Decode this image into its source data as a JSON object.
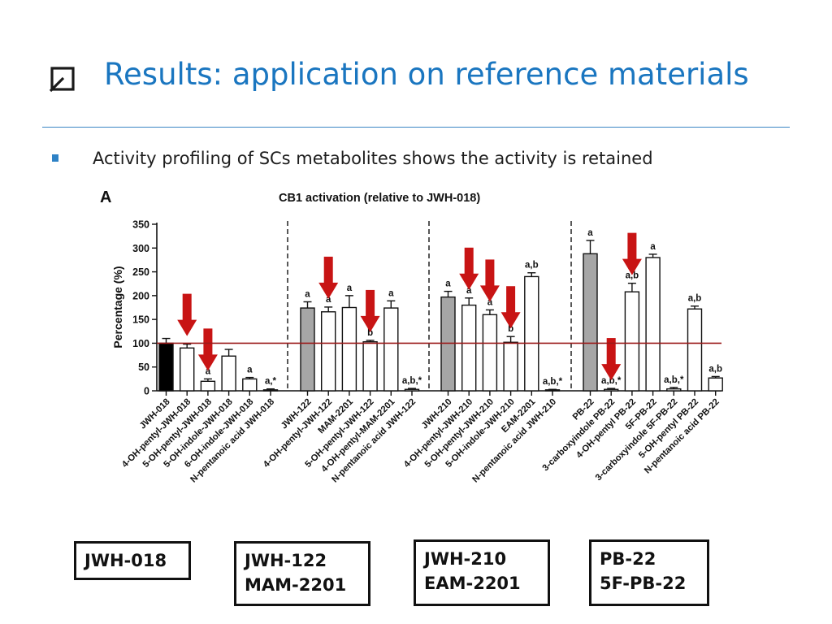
{
  "slide": {
    "title": "Results: application on reference materials",
    "bullet": "Activity profiling of SCs metabolites shows the activity is retained"
  },
  "colors": {
    "title": "#1a76c0",
    "arrow": "#c81414",
    "reference_line": "#9b1b1b",
    "parent_bar_jwh018": "#000000",
    "parent_bar": "#a6a6a6",
    "metabolite_bar": "#ffffff"
  },
  "chart_data": {
    "type": "bar",
    "panel_label": "A",
    "title": "CB1 activation (relative to JWH-018)",
    "ylabel": "Percentage (%)",
    "ylim": [
      0,
      350
    ],
    "yticks": [
      0,
      50,
      100,
      150,
      200,
      250,
      300,
      350
    ],
    "reference_line": 100,
    "grid": false,
    "legend": "none",
    "groups": [
      {
        "box_lines": [
          "JWH-018"
        ],
        "bars": [
          {
            "label": "JWH-018",
            "value": 100,
            "error": 10,
            "fill": "black",
            "annotation": "",
            "arrow": false
          },
          {
            "label": "4-OH-pentyl-JWH-018",
            "value": 90,
            "error": 8,
            "fill": "white",
            "annotation": "",
            "arrow": true
          },
          {
            "label": "5-OH-pentyl-JWH-018",
            "value": 20,
            "error": 5,
            "fill": "white",
            "annotation": "a",
            "arrow": true
          },
          {
            "label": "5-OH-indole-JWH-018",
            "value": 73,
            "error": 14,
            "fill": "white",
            "annotation": "",
            "arrow": false
          },
          {
            "label": "6-OH-indole-JWH-018",
            "value": 25,
            "error": 3,
            "fill": "white",
            "annotation": "a",
            "arrow": false
          },
          {
            "label": "N-pentanoic acid JWH-018",
            "value": 2,
            "error": 2,
            "fill": "white",
            "annotation": "a,*",
            "arrow": false
          }
        ]
      },
      {
        "box_lines": [
          "JWH-122",
          "MAM-2201"
        ],
        "bars": [
          {
            "label": "JWH-122",
            "value": 174,
            "error": 13,
            "fill": "grey",
            "annotation": "a",
            "arrow": false
          },
          {
            "label": "4-OH-pentyl-JWH-122",
            "value": 166,
            "error": 10,
            "fill": "white",
            "annotation": "a",
            "arrow": true
          },
          {
            "label": "MAM-2201",
            "value": 175,
            "error": 25,
            "fill": "white",
            "annotation": "a",
            "arrow": false
          },
          {
            "label": "5-OH-pentyl-JWH-122",
            "value": 103,
            "error": 3,
            "fill": "white",
            "annotation": "b",
            "arrow": true
          },
          {
            "label": "4-OH-pentyl-MAM-2201",
            "value": 174,
            "error": 15,
            "fill": "white",
            "annotation": "a",
            "arrow": false
          },
          {
            "label": "N-pentanoic acid JWH-122",
            "value": 3,
            "error": 2,
            "fill": "white",
            "annotation": "a,b,*",
            "arrow": false
          }
        ]
      },
      {
        "box_lines": [
          "JWH-210",
          "EAM-2201"
        ],
        "bars": [
          {
            "label": "JWH-210",
            "value": 197,
            "error": 12,
            "fill": "grey",
            "annotation": "a",
            "arrow": false
          },
          {
            "label": "4-OH-pentyl-JWH-210",
            "value": 180,
            "error": 15,
            "fill": "white",
            "annotation": "a",
            "arrow": true
          },
          {
            "label": "5-OH-pentyl-JWH-210",
            "value": 160,
            "error": 10,
            "fill": "white",
            "annotation": "a",
            "arrow": true
          },
          {
            "label": "5-OH-indole-JWH-210",
            "value": 102,
            "error": 12,
            "fill": "white",
            "annotation": "b",
            "arrow": true
          },
          {
            "label": "EAM-2201",
            "value": 240,
            "error": 8,
            "fill": "white",
            "annotation": "a,b",
            "arrow": false
          },
          {
            "label": "N-pentanoic acid JWH-210",
            "value": 2,
            "error": 1,
            "fill": "white",
            "annotation": "a,b,*",
            "arrow": false
          }
        ]
      },
      {
        "box_lines": [
          "PB-22",
          "5F-PB-22"
        ],
        "bars": [
          {
            "label": "PB-22",
            "value": 288,
            "error": 28,
            "fill": "grey",
            "annotation": "a",
            "arrow": false
          },
          {
            "label": "3-carboxyindole PB-22",
            "value": 3,
            "error": 2,
            "fill": "white",
            "annotation": "a,b,*",
            "arrow": true
          },
          {
            "label": "4-OH-pentyl PB-22",
            "value": 208,
            "error": 18,
            "fill": "white",
            "annotation": "a,b",
            "arrow": true
          },
          {
            "label": "5F-PB-22",
            "value": 280,
            "error": 7,
            "fill": "white",
            "annotation": "a",
            "arrow": false
          },
          {
            "label": "3-carboxyindole 5F-PB-22",
            "value": 4,
            "error": 3,
            "fill": "white",
            "annotation": "a,b,*",
            "arrow": false
          },
          {
            "label": "5-OH-pentyl PB-22",
            "value": 172,
            "error": 6,
            "fill": "white",
            "annotation": "a,b",
            "arrow": false
          },
          {
            "label": "N-pentanoic acid PB-22",
            "value": 27,
            "error": 3,
            "fill": "white",
            "annotation": "a,b",
            "arrow": false
          }
        ]
      }
    ]
  }
}
